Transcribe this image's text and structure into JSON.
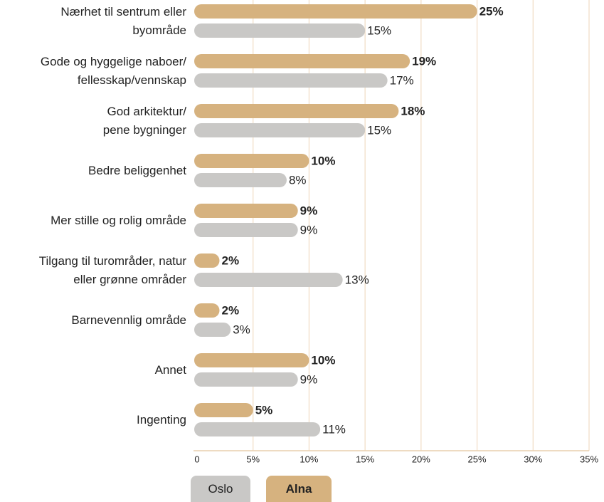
{
  "chart_data": {
    "type": "hbar",
    "categories": [
      "Nærhet til sentrum eller\nbyområde",
      "Gode og hyggelige naboer/\nfellesskap/vennskap",
      "God arkitektur/\npene bygninger",
      "Bedre beliggenhet",
      "Mer stille og rolig område",
      "Tilgang til turområder, natur\neller grønne områder",
      "Barnevennlig område",
      "Annet",
      "Ingenting"
    ],
    "series": [
      {
        "name": "Oslo",
        "color": "#c9c8c6",
        "values": [
          15,
          17,
          15,
          8,
          9,
          13,
          3,
          9,
          11
        ],
        "value_labels": [
          "15%",
          "17%",
          "15%",
          "8%",
          "9%",
          "13%",
          "3%",
          "9%",
          "11%"
        ]
      },
      {
        "name": "Alna",
        "color": "#d6b27f",
        "values": [
          25,
          19,
          18,
          10,
          9,
          2,
          2,
          10,
          5
        ],
        "value_labels": [
          "25%",
          "19%",
          "18%",
          "10%",
          "9%",
          "2%",
          "2%",
          "10%",
          "5%"
        ]
      }
    ],
    "xlim": [
      0,
      35
    ],
    "xticks": [
      0,
      {
        "value": 5,
        "label": "5%"
      },
      {
        "value": 10,
        "label": "10%"
      },
      {
        "value": 15,
        "label": "15%"
      },
      {
        "value": 20,
        "label": "20%"
      },
      {
        "value": 25,
        "label": "25%"
      },
      {
        "value": 30,
        "label": "30%"
      },
      {
        "value": 35,
        "label": "35%"
      }
    ],
    "grid": true
  }
}
